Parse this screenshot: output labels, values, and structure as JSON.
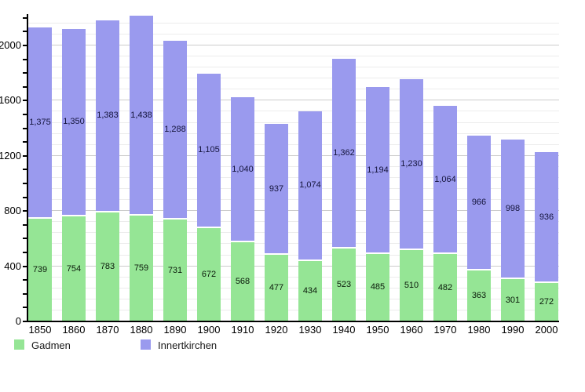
{
  "chart_data": {
    "type": "bar",
    "stacked": true,
    "title": "",
    "xlabel": "",
    "ylabel": "",
    "categories": [
      "1850",
      "1860",
      "1870",
      "1880",
      "1890",
      "1900",
      "1910",
      "1920",
      "1930",
      "1940",
      "1950",
      "1960",
      "1970",
      "1980",
      "1990",
      "2000"
    ],
    "series": [
      {
        "name": "Gadmen",
        "color": "#95e595",
        "label_color": "#0a1a0a",
        "values": [
          739,
          754,
          783,
          759,
          731,
          672,
          568,
          477,
          434,
          523,
          485,
          510,
          482,
          363,
          301,
          272
        ]
      },
      {
        "name": "Innertkirchen",
        "color": "#9a9aee",
        "label_color": "#14143c",
        "values": [
          1375,
          1350,
          1383,
          1438,
          1288,
          1105,
          1040,
          937,
          1074,
          1362,
          1194,
          1230,
          1064,
          966,
          998,
          936
        ]
      }
    ],
    "ylim": [
      0,
      2210
    ],
    "ytick_labeled_values": [
      0,
      400,
      800,
      1200,
      1600,
      2000
    ],
    "ytick_minor_step": 100,
    "grid_step": 80,
    "grid_major_step": 400,
    "grid": true,
    "legend_position": "bottom-left",
    "value_labels": "centered-in-segment",
    "axis_color": "#000000",
    "grid_minor_color": "#ececec",
    "grid_major_color": "#cccccc"
  }
}
